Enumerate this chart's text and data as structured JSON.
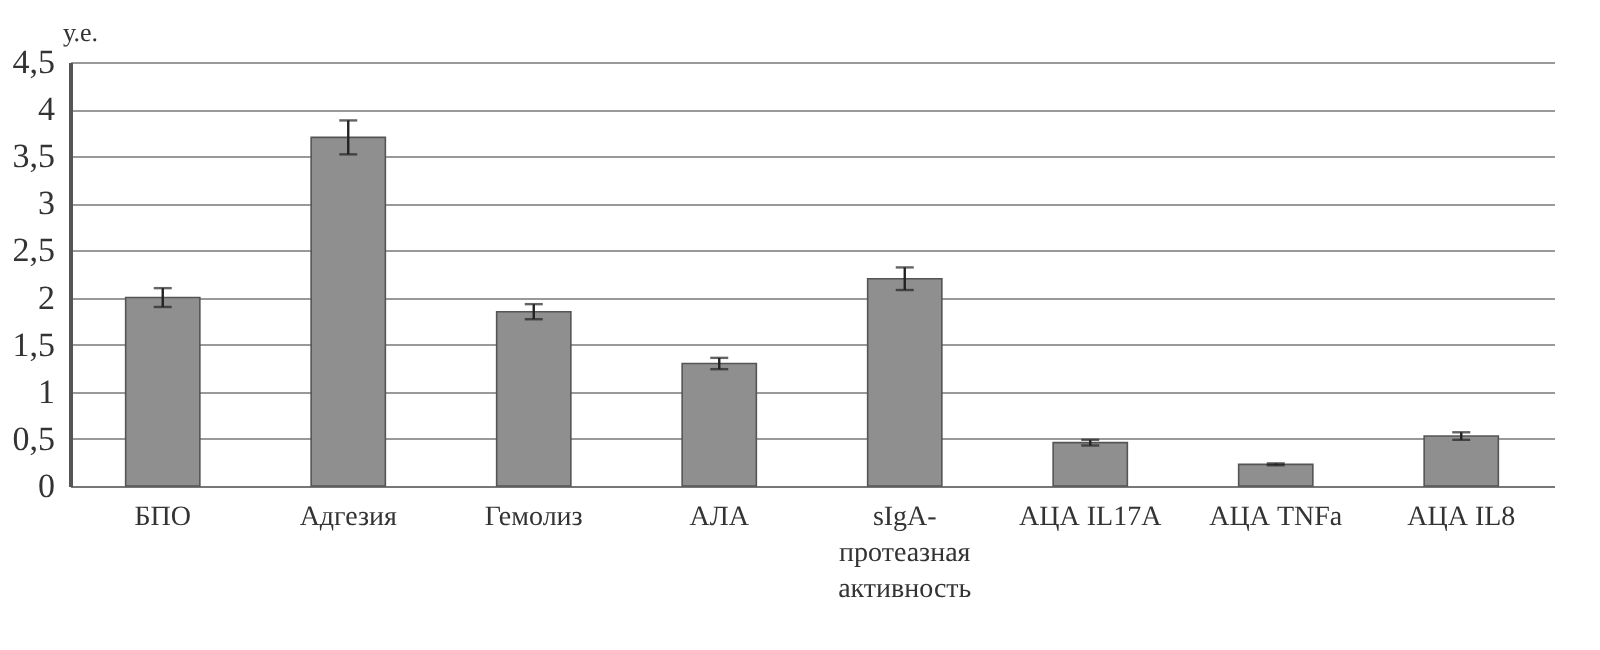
{
  "chart_data": {
    "type": "bar",
    "ylabel": "у.е.",
    "categories": [
      "БПО",
      "Адгезия",
      "Гемолиз",
      "АЛА",
      "sIgA-протеазная активность",
      "АЦА IL17A",
      "АЦА TNFa",
      "АЦА IL8"
    ],
    "values": [
      2.0,
      3.7,
      1.85,
      1.3,
      2.2,
      0.46,
      0.23,
      0.53
    ],
    "errors": [
      0.1,
      0.18,
      0.08,
      0.06,
      0.12,
      0.03,
      0.01,
      0.04
    ],
    "color": "#8f8f8f",
    "ylim": [
      0,
      4.5
    ],
    "yticks": [
      {
        "value": 0,
        "label": "0"
      },
      {
        "value": 0.5,
        "label": "0,5"
      },
      {
        "value": 1,
        "label": "1"
      },
      {
        "value": 1.5,
        "label": "1,5"
      },
      {
        "value": 2,
        "label": "2"
      },
      {
        "value": 2.5,
        "label": "2,5"
      },
      {
        "value": 3,
        "label": "3"
      },
      {
        "value": 3.5,
        "label": "3,5"
      },
      {
        "value": 4,
        "label": "4"
      },
      {
        "value": 4.5,
        "label": "4,5"
      }
    ],
    "grid": "y"
  }
}
